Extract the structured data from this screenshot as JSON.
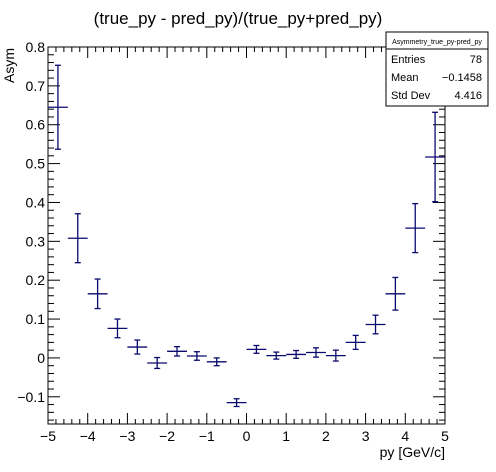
{
  "chart_data": {
    "type": "scatter",
    "title": "(true_py - pred_py)/(true_py+pred_py)",
    "xlabel": "py [GeV/c]",
    "ylabel": "Asym",
    "xlim": [
      -5,
      5
    ],
    "ylim": [
      -0.17,
      0.8
    ],
    "xticks": [
      "−5",
      "−4",
      "−3",
      "−2",
      "−1",
      "0",
      "1",
      "2",
      "3",
      "4",
      "5"
    ],
    "yticks": [
      "−0.1",
      "0",
      "0.1",
      "0.2",
      "0.3",
      "0.4",
      "0.5",
      "0.6",
      "0.7",
      "0.8"
    ],
    "points": [
      {
        "x": -4.75,
        "y": 0.645,
        "xerr": 0.25,
        "yerr": 0.108
      },
      {
        "x": -4.25,
        "y": 0.308,
        "xerr": 0.25,
        "yerr": 0.063
      },
      {
        "x": -3.75,
        "y": 0.165,
        "xerr": 0.25,
        "yerr": 0.038
      },
      {
        "x": -3.25,
        "y": 0.076,
        "xerr": 0.25,
        "yerr": 0.024
      },
      {
        "x": -2.75,
        "y": 0.028,
        "xerr": 0.25,
        "yerr": 0.018
      },
      {
        "x": -2.25,
        "y": -0.013,
        "xerr": 0.25,
        "yerr": 0.014
      },
      {
        "x": -1.75,
        "y": 0.017,
        "xerr": 0.25,
        "yerr": 0.012
      },
      {
        "x": -1.25,
        "y": 0.005,
        "xerr": 0.25,
        "yerr": 0.011
      },
      {
        "x": -0.75,
        "y": -0.01,
        "xerr": 0.25,
        "yerr": 0.01
      },
      {
        "x": -0.25,
        "y": -0.115,
        "xerr": 0.25,
        "yerr": 0.01
      },
      {
        "x": 0.25,
        "y": 0.022,
        "xerr": 0.25,
        "yerr": 0.01
      },
      {
        "x": 0.75,
        "y": 0.006,
        "xerr": 0.25,
        "yerr": 0.009
      },
      {
        "x": 1.25,
        "y": 0.009,
        "xerr": 0.25,
        "yerr": 0.01
      },
      {
        "x": 1.75,
        "y": 0.014,
        "xerr": 0.25,
        "yerr": 0.012
      },
      {
        "x": 2.25,
        "y": 0.006,
        "xerr": 0.25,
        "yerr": 0.014
      },
      {
        "x": 2.75,
        "y": 0.04,
        "xerr": 0.25,
        "yerr": 0.018
      },
      {
        "x": 3.25,
        "y": 0.086,
        "xerr": 0.25,
        "yerr": 0.024
      },
      {
        "x": 3.75,
        "y": 0.165,
        "xerr": 0.25,
        "yerr": 0.042
      },
      {
        "x": 4.25,
        "y": 0.334,
        "xerr": 0.25,
        "yerr": 0.063
      },
      {
        "x": 4.75,
        "y": 0.517,
        "xerr": 0.25,
        "yerr": 0.115
      }
    ],
    "marker_color": "#0a0a6e",
    "stats": {
      "title": "Asymmetry_true_py-pred_py",
      "rows": [
        {
          "label": "Entries",
          "value": "78"
        },
        {
          "label": "Mean",
          "value": "−0.1458"
        },
        {
          "label": "Std Dev",
          "value": "4.416"
        }
      ]
    }
  }
}
